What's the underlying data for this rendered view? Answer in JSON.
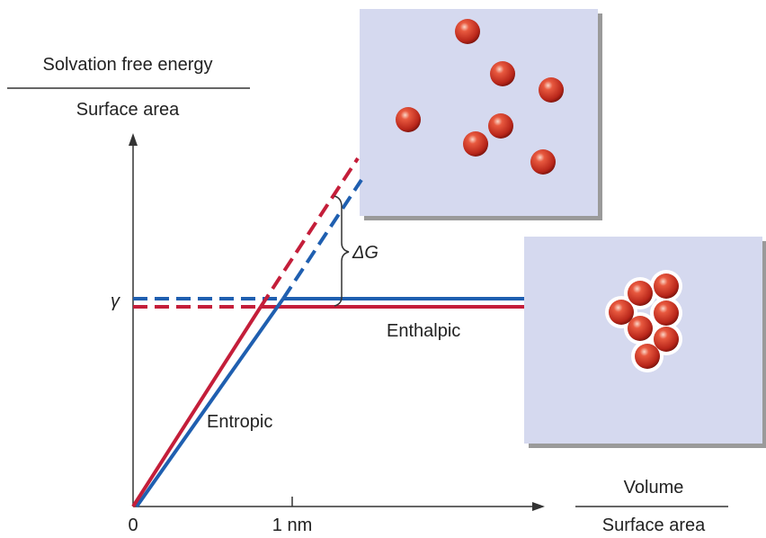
{
  "y_axis": {
    "numerator": "Solvation free energy",
    "denominator": "Surface area"
  },
  "x_axis": {
    "numerator": "Volume",
    "denominator": "Surface area",
    "ticks": [
      "0",
      "1 nm"
    ]
  },
  "gamma_label": "γ",
  "delta_g_label": "ΔG",
  "curves": {
    "enthalpic": "Enthalpic",
    "entropic": "Entropic"
  }
}
